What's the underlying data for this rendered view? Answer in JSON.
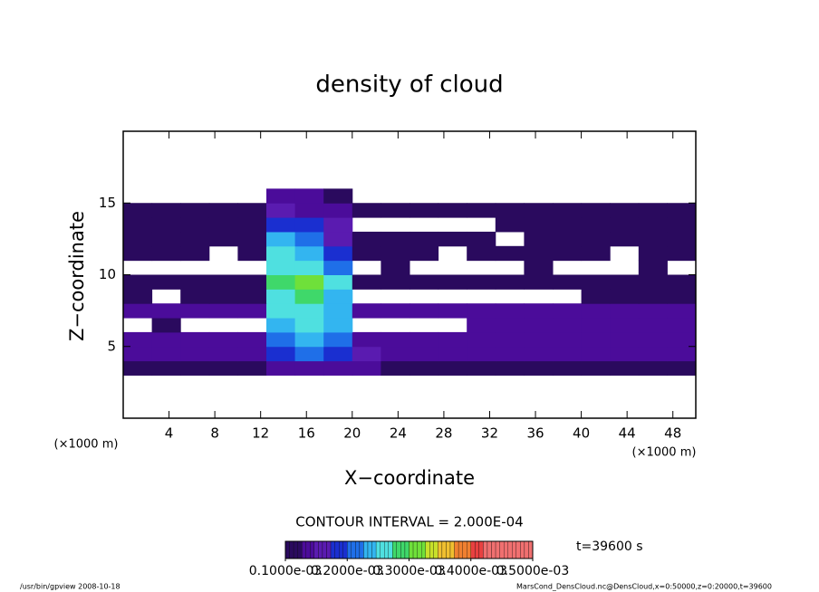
{
  "chart_data": {
    "type": "contour",
    "title": "density of cloud",
    "xlabel": "X−coordinate",
    "ylabel": "Z−coordinate",
    "xunit": "(×1000 m)",
    "yunit": "(×1000 m)",
    "xlim": [
      0,
      50
    ],
    "ylim": [
      0,
      20
    ],
    "xticks": [
      4,
      8,
      12,
      16,
      20,
      24,
      28,
      32,
      36,
      40,
      44,
      48
    ],
    "yticks": [
      5,
      10,
      15
    ],
    "x": [
      1.25,
      3.75,
      6.25,
      8.75,
      11.25,
      13.75,
      16.25,
      18.75,
      21.25,
      23.75,
      26.25,
      28.75,
      31.25,
      33.75,
      36.25,
      38.75,
      41.25,
      43.75,
      46.25,
      48.75
    ],
    "y": [
      3.5,
      4.5,
      5.5,
      6.5,
      7.5,
      8.5,
      9.5,
      10.5,
      11.5,
      12.5,
      13.5,
      14.5,
      15.5
    ],
    "z": [
      [
        0.00012,
        0.00012,
        0.00012,
        0.00012,
        0.00012,
        0.00014,
        0.00014,
        0.00014,
        0.00013,
        0.00012,
        0.00012,
        0.00012,
        0.00012,
        0.00012,
        0.00012,
        0.00012,
        0.00012,
        0.00012,
        0.00012,
        0.00012
      ],
      [
        0.00015,
        0.00015,
        0.00015,
        0.00015,
        0.00015,
        0.0002,
        0.00022,
        0.0002,
        0.00016,
        0.00015,
        0.00015,
        0.00015,
        0.00015,
        0.00015,
        0.00015,
        0.00015,
        0.00015,
        0.00015,
        0.00015,
        0.00015
      ],
      [
        0.00014,
        0.00014,
        0.00014,
        0.00014,
        0.00014,
        0.00022,
        0.00026,
        0.00024,
        0.00015,
        0.00014,
        0.00014,
        0.00014,
        0.00014,
        0.00014,
        0.00014,
        0.00014,
        0.00014,
        0.00014,
        0.00014,
        0.00014
      ],
      [
        null,
        0.00012,
        null,
        null,
        null,
        0.00025,
        0.00028,
        0.00026,
        null,
        null,
        null,
        null,
        0.00013,
        0.00013,
        0.00013,
        0.00013,
        0.00013,
        0.00013,
        0.00013,
        0.00013
      ],
      [
        0.00013,
        0.00013,
        0.00013,
        0.00013,
        0.00013,
        0.00028,
        0.0003,
        0.00027,
        0.00013,
        0.00013,
        0.00013,
        0.00013,
        0.00013,
        0.00013,
        0.00013,
        0.00013,
        0.00013,
        0.00013,
        0.00013,
        0.00013
      ],
      [
        0.00012,
        null,
        0.00012,
        0.00012,
        0.00012,
        0.0003,
        0.00032,
        0.00025,
        null,
        null,
        null,
        null,
        null,
        null,
        null,
        null,
        0.00012,
        0.00012,
        0.00012,
        0.00012
      ],
      [
        0.00012,
        0.00012,
        0.00012,
        0.00012,
        0.00012,
        0.00032,
        0.00034,
        0.00028,
        0.00012,
        0.00012,
        0.00012,
        0.00012,
        0.00012,
        0.00012,
        0.00012,
        0.00012,
        0.00012,
        0.00012,
        0.00012,
        0.00012
      ],
      [
        null,
        null,
        null,
        null,
        null,
        0.0003,
        0.00028,
        0.00022,
        null,
        0.00012,
        null,
        null,
        null,
        null,
        0.00012,
        null,
        null,
        null,
        0.00012,
        null
      ],
      [
        0.00012,
        0.00012,
        0.00012,
        null,
        0.00012,
        0.00028,
        0.00026,
        0.0002,
        0.00012,
        0.00012,
        0.00012,
        null,
        0.00012,
        0.00012,
        0.00012,
        0.00012,
        0.00012,
        null,
        0.00012,
        0.00012
      ],
      [
        0.00012,
        0.00012,
        0.00012,
        0.00012,
        0.00012,
        0.00025,
        0.00024,
        0.00018,
        0.00012,
        0.00012,
        0.00012,
        0.00012,
        0.00012,
        null,
        0.00012,
        0.00012,
        0.00012,
        0.00012,
        0.00012,
        0.00012
      ],
      [
        0.00012,
        0.00012,
        0.00012,
        0.00012,
        0.00012,
        0.0002,
        0.0002,
        0.00016,
        null,
        null,
        null,
        null,
        null,
        0.00012,
        0.00012,
        0.00012,
        0.00012,
        0.00012,
        0.00012,
        0.00012
      ],
      [
        0.00012,
        0.00012,
        0.00012,
        0.00012,
        0.00012,
        0.00016,
        0.00015,
        0.00013,
        0.00012,
        0.00012,
        0.00012,
        0.00012,
        0.00012,
        0.00012,
        0.00012,
        0.00012,
        0.00012,
        0.00012,
        0.00012,
        0.00012
      ],
      [
        null,
        null,
        null,
        null,
        null,
        0.00014,
        0.00013,
        0.00012,
        null,
        null,
        null,
        null,
        null,
        null,
        null,
        null,
        null,
        null,
        null,
        null
      ]
    ],
    "colormap": [
      "#2a0a5e",
      "#4b0c9a",
      "#5a1bb0",
      "#1a2fd0",
      "#1f6fe8",
      "#33b5f0",
      "#4fe0e0",
      "#3fd86a",
      "#6fe03a",
      "#c8e02a",
      "#f0c030",
      "#f08030",
      "#e84040",
      "#f07070"
    ],
    "colorbar_lim": [
      0.0001,
      0.0005
    ],
    "colorbar_ticks": [
      {
        "value": 0.0001,
        "label": "0.1000e-03"
      },
      {
        "value": 0.0002,
        "label": "0.2000e-03"
      },
      {
        "value": 0.0003,
        "label": "0.3000e-03"
      },
      {
        "value": 0.0004,
        "label": "0.4000e-03"
      },
      {
        "value": 0.0005,
        "label": "0.5000e-03"
      }
    ],
    "contour_interval": "CONTOUR INTERVAL = 2.000E-04",
    "time": "t=39600 s",
    "footer_left": "/usr/bin/gpview   2008-10-18",
    "footer_right": "MarsCond_DensCloud.nc@DensCloud,x=0:50000,z=0:20000,t=39600"
  }
}
